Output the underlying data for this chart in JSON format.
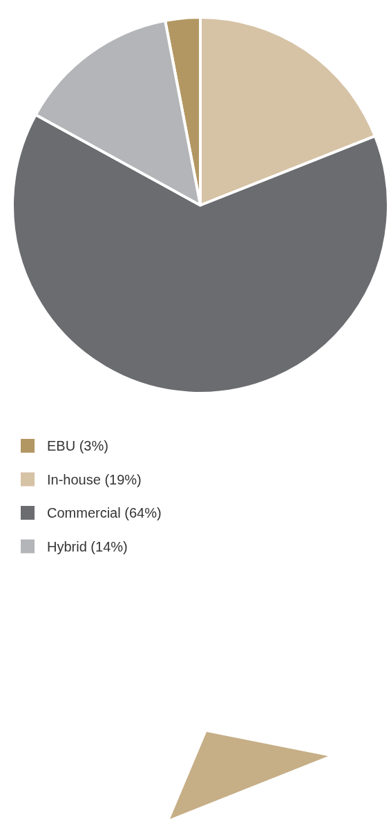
{
  "chart_data": {
    "type": "pie",
    "categories": [
      "EBU (3%)",
      "In-house (19%)",
      "Commercial (64%)",
      "Hybrid (14%)"
    ],
    "values": [
      3,
      19,
      64,
      14
    ],
    "colors": [
      "#b39763",
      "#d6c2a5",
      "#6b6c70",
      "#b4b5b8"
    ],
    "legend": "bottom"
  }
}
